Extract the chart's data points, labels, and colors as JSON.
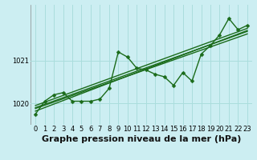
{
  "title": "Graphe pression niveau de la mer (hPa)",
  "bg_color": "#cceef2",
  "grid_color": "#aadddd",
  "line_color": "#1a6b1a",
  "x_ticks": [
    0,
    1,
    2,
    3,
    4,
    5,
    6,
    7,
    8,
    9,
    10,
    11,
    12,
    13,
    14,
    15,
    16,
    17,
    18,
    19,
    20,
    21,
    22,
    23
  ],
  "y_ticks": [
    1020,
    1021
  ],
  "ylim": [
    1019.5,
    1022.3
  ],
  "xlim": [
    -0.5,
    23.5
  ],
  "main_line": {
    "x": [
      0,
      1,
      2,
      3,
      4,
      5,
      6,
      7,
      8,
      9,
      10,
      11,
      12,
      13,
      14,
      15,
      16,
      17,
      18,
      19,
      20,
      21,
      22,
      23
    ],
    "y": [
      1019.75,
      1020.05,
      1020.2,
      1020.25,
      1020.05,
      1020.05,
      1020.05,
      1020.1,
      1020.35,
      1021.2,
      1021.08,
      1020.82,
      1020.78,
      1020.68,
      1020.62,
      1020.42,
      1020.72,
      1020.52,
      1021.15,
      1021.35,
      1021.6,
      1021.98,
      1021.72,
      1021.82
    ]
  },
  "trend_lines": [
    [
      1019.82,
      1021.7
    ],
    [
      1019.88,
      1021.62
    ],
    [
      1019.95,
      1021.75
    ],
    [
      1019.9,
      1021.68
    ]
  ],
  "title_fontsize": 8,
  "tick_fontsize": 6,
  "marker_size": 2.5,
  "line_width": 1.0
}
